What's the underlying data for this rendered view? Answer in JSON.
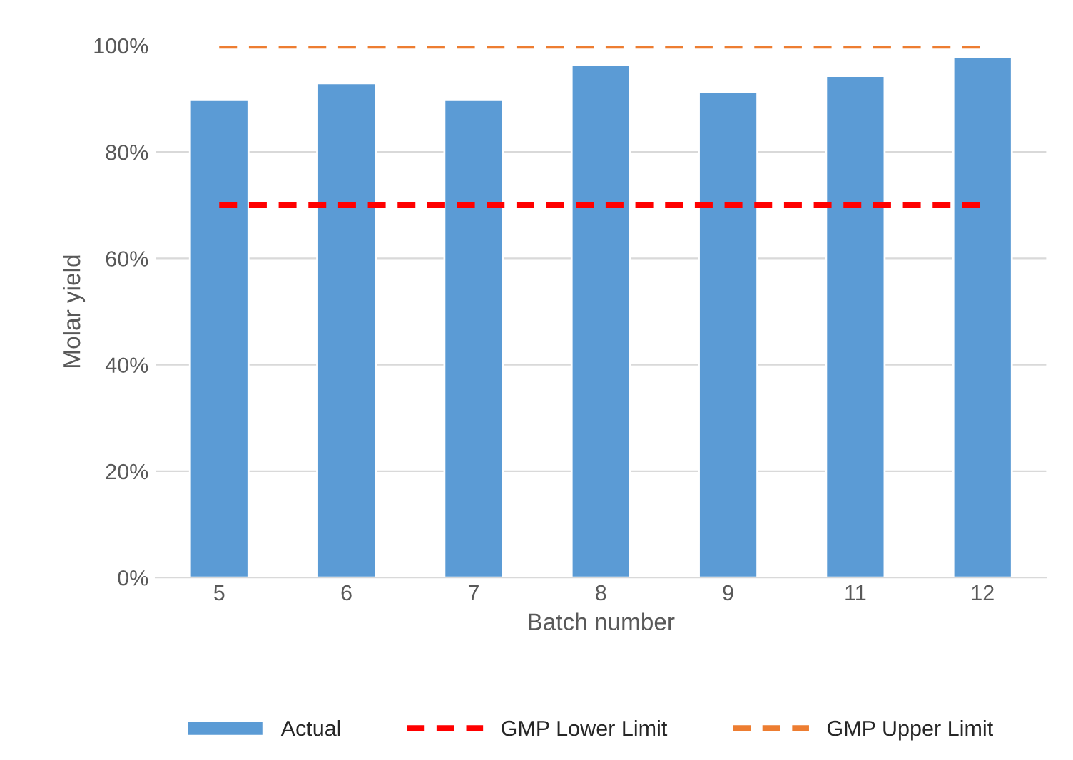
{
  "chart_data": {
    "type": "bar",
    "xlabel": "Batch number",
    "ylabel": "Molar yield",
    "categories": [
      "5",
      "6",
      "7",
      "8",
      "9",
      "11",
      "12"
    ],
    "series": [
      {
        "name": "Actual",
        "color": "#5b9bd5",
        "values": [
          89.9,
          92.9,
          89.9,
          96.4,
          91.3,
          94.3,
          97.8
        ]
      },
      {
        "name": "GMP Lower Limit",
        "type": "line",
        "color": "#ff0000",
        "line_style": "dashed",
        "values": [
          70,
          70,
          70,
          70,
          70,
          70,
          70
        ]
      },
      {
        "name": "GMP Upper Limit",
        "type": "line",
        "color": "#ed7d31",
        "line_style": "dashed",
        "values": [
          100,
          100,
          100,
          100,
          100,
          100,
          100
        ]
      }
    ],
    "ylim": [
      0,
      100
    ],
    "yticks": [
      {
        "value": 0,
        "label": "0%"
      },
      {
        "value": 20,
        "label": "20%"
      },
      {
        "value": 40,
        "label": "40%"
      },
      {
        "value": 60,
        "label": "60%"
      },
      {
        "value": 80,
        "label": "80%"
      },
      {
        "value": 100,
        "label": "100%"
      }
    ],
    "grid": "y",
    "legend": "bottom"
  }
}
